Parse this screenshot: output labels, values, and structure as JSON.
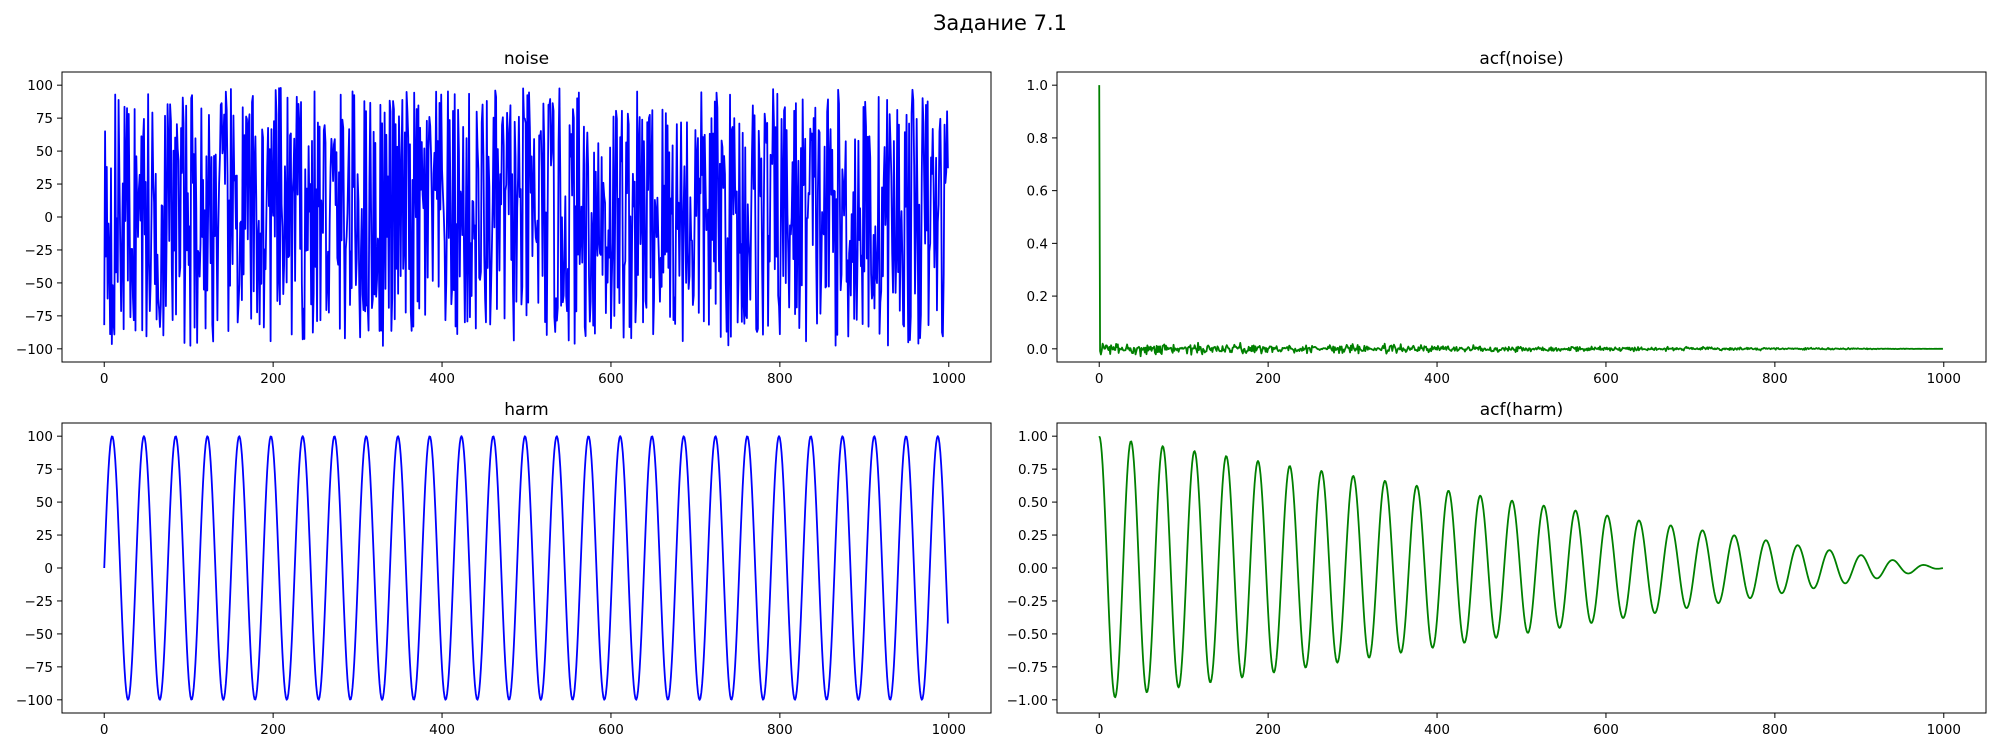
{
  "figure": {
    "title": "Задание 7.1"
  },
  "chart_data": [
    {
      "id": "noise",
      "type": "line",
      "title": "noise",
      "color": "#0000ff",
      "xlim": [
        -50,
        1050
      ],
      "ylim": [
        -110,
        110
      ],
      "xticks": [
        0,
        200,
        400,
        600,
        800,
        1000
      ],
      "yticks": [
        -100,
        -75,
        -50,
        -25,
        0,
        25,
        50,
        75,
        100
      ],
      "ytick_labels": [
        "−100",
        "−75",
        "−50",
        "−25",
        "0",
        "25",
        "50",
        "75",
        "100"
      ],
      "series": [
        {
          "kind": "uniform-noise",
          "n": 1000,
          "amplitude": 100,
          "first_values": [
            -82,
            65,
            -30,
            38
          ],
          "last_value": 37
        }
      ]
    },
    {
      "id": "acf-noise",
      "type": "line",
      "title": "acf(noise)",
      "color": "#008000",
      "xlim": [
        -50,
        1050
      ],
      "ylim": [
        -0.05,
        1.05
      ],
      "xticks": [
        0,
        200,
        400,
        600,
        800,
        1000
      ],
      "yticks": [
        0.0,
        0.2,
        0.4,
        0.6,
        0.8,
        1.0
      ],
      "ytick_labels": [
        "0.0",
        "0.2",
        "0.4",
        "0.6",
        "0.8",
        "1.0"
      ],
      "series": [
        {
          "kind": "acf-noise",
          "n": 1000,
          "lag0": 1.0,
          "noise_band": 0.04
        }
      ]
    },
    {
      "id": "harm",
      "type": "line",
      "title": "harm",
      "color": "#0000ff",
      "xlim": [
        -50,
        1050
      ],
      "ylim": [
        -110,
        110
      ],
      "xticks": [
        0,
        200,
        400,
        600,
        800,
        1000
      ],
      "yticks": [
        -100,
        -75,
        -50,
        -25,
        0,
        25,
        50,
        75,
        100
      ],
      "ytick_labels": [
        "−100",
        "−75",
        "−50",
        "−25",
        "0",
        "25",
        "50",
        "75",
        "100"
      ],
      "series": [
        {
          "kind": "sine",
          "n": 1000,
          "amplitude": 100,
          "period": 37.6
        }
      ]
    },
    {
      "id": "acf-harm",
      "type": "line",
      "title": "acf(harm)",
      "color": "#008000",
      "xlim": [
        -50,
        1050
      ],
      "ylim": [
        -1.1,
        1.1
      ],
      "xticks": [
        0,
        200,
        400,
        600,
        800,
        1000
      ],
      "yticks": [
        -1.0,
        -0.75,
        -0.5,
        -0.25,
        0.0,
        0.25,
        0.5,
        0.75,
        1.0
      ],
      "ytick_labels": [
        "−1.00",
        "−0.75",
        "−0.50",
        "−0.25",
        "0.00",
        "0.25",
        "0.50",
        "0.75",
        "1.00"
      ],
      "series": [
        {
          "kind": "decaying-cosine",
          "n": 1000,
          "amplitude": 1.0,
          "period": 37.6
        }
      ]
    }
  ]
}
